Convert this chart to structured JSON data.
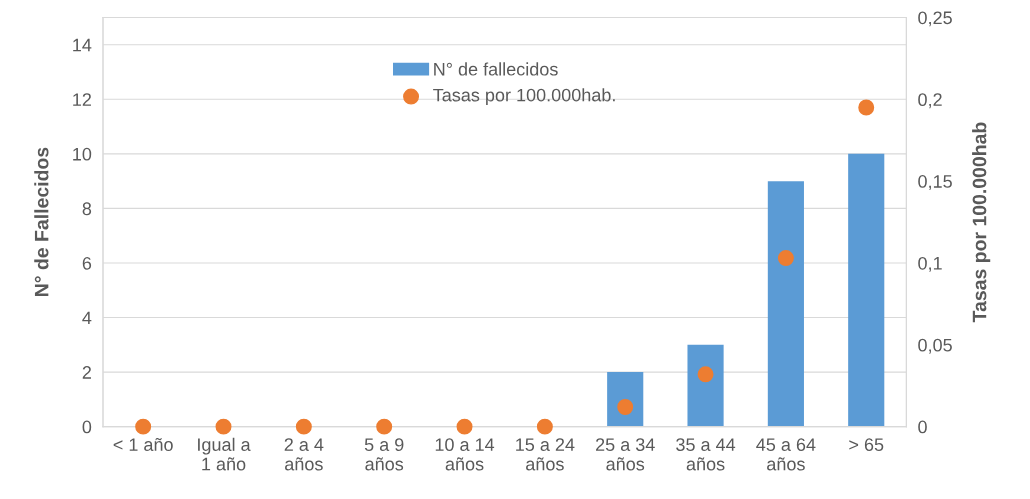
{
  "chart_data": {
    "type": "bar",
    "ylabel": "N° de Fallecidos",
    "y2label": "Tasas por 100.000hab",
    "categories": [
      "< 1 año",
      "Igual a\n1 año",
      "2 a 4\naños",
      "5 a 9\naños",
      "10 a 14\naños",
      "15 a 24\naños",
      "25 a 34\naños",
      "35 a 44\naños",
      "45 a 64\naños",
      "> 65"
    ],
    "series": [
      {
        "name": "N° de fallecidos",
        "color": "#5b9bd5",
        "values": [
          0,
          0,
          0,
          0,
          0,
          0,
          2,
          3,
          9,
          10
        ]
      },
      {
        "name": "Tasas por 100.000hab.",
        "type": "scatter",
        "axis": "y2",
        "color": "#ed7d31",
        "values": [
          0,
          0,
          0,
          0,
          0,
          0,
          0.012,
          0.032,
          0.103,
          0.195
        ]
      }
    ],
    "ylim": [
      0,
      15
    ],
    "yticks": [
      0,
      2,
      4,
      6,
      8,
      10,
      12,
      14
    ],
    "y2lim": [
      0,
      0.25
    ],
    "y2ticks": [
      {
        "value": 0,
        "label": "0"
      },
      {
        "value": 0.05,
        "label": "0,05"
      },
      {
        "value": 0.1,
        "label": "0,1"
      },
      {
        "value": 0.15,
        "label": "0,15"
      },
      {
        "value": 0.2,
        "label": "0,2"
      },
      {
        "value": 0.25,
        "label": "0,25"
      }
    ],
    "grid": "y",
    "legend": "top",
    "marker": "circle"
  }
}
